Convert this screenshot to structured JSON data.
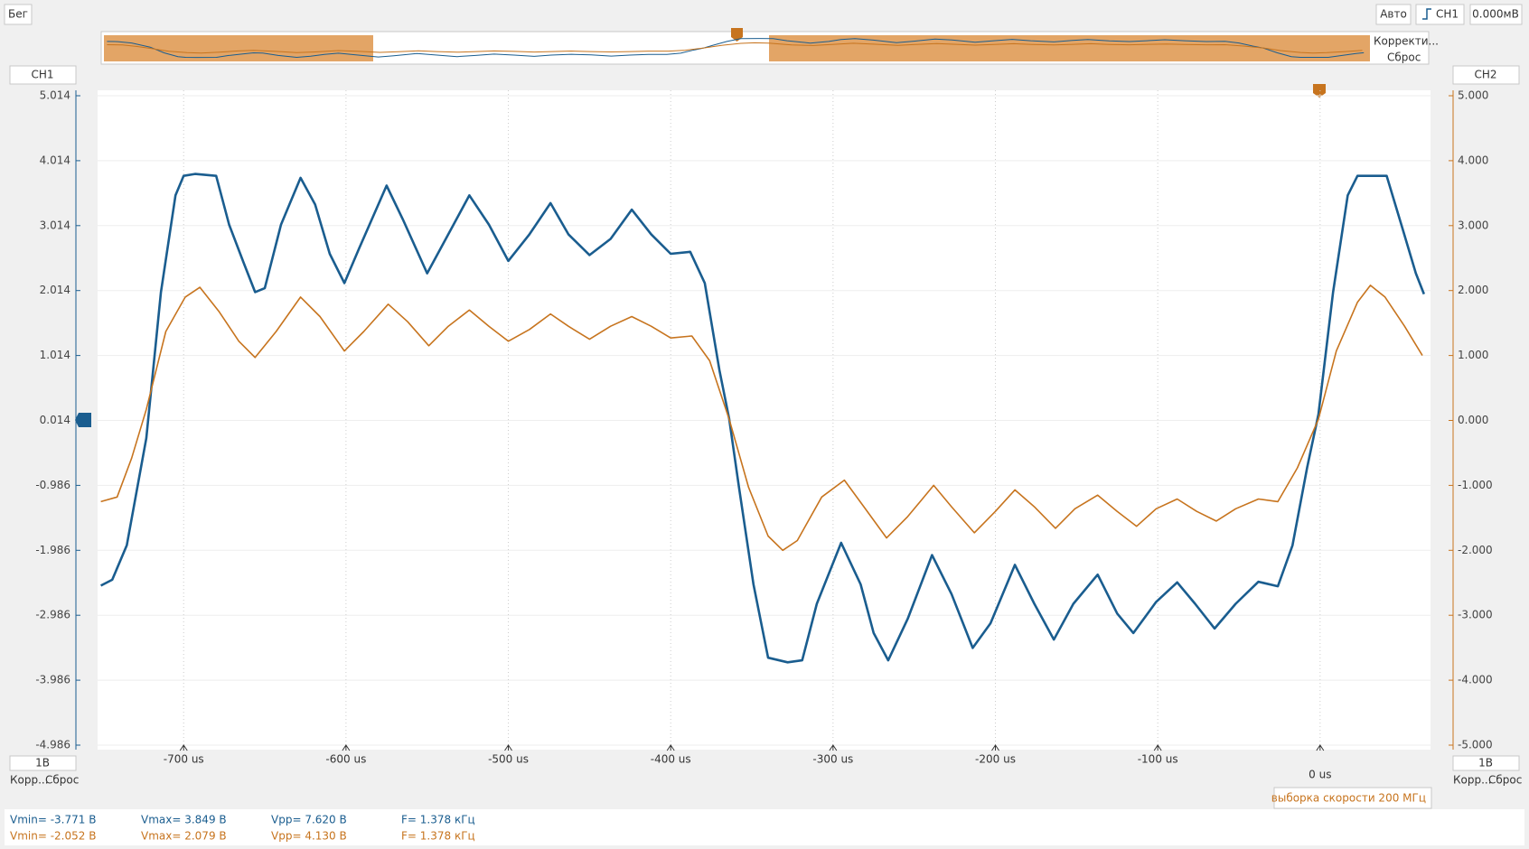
{
  "ui": {
    "run_status": "Бег",
    "trigger_mode": "Авто",
    "trigger_source": "CH1",
    "trigger_level": "0.000мВ",
    "overview_buttons": [
      "Корректи...",
      "Сброс"
    ],
    "ch1_label": "CH1",
    "ch2_label": "CH2",
    "ch1_scale": "1В",
    "ch2_scale": "1В",
    "ch1_buttons": [
      "Корр...",
      "Сброс"
    ],
    "ch2_buttons": [
      "Корр...",
      "Сброс"
    ],
    "sample_rate": "выборка скорости 200 МГц"
  },
  "measurements": [
    [
      "Vmin= -3.771 В",
      "Vmax= 3.849 В",
      "Vpp= 7.620 В",
      "F= 1.378 кГц"
    ],
    [
      "Vmin= -2.052 В",
      "Vmax= 2.079 В",
      "Vpp= 4.130 В",
      "F= 1.378 кГц"
    ]
  ],
  "chart_data": {
    "type": "line",
    "grid": true,
    "xlim": [
      -753,
      68
    ],
    "xticks": [
      {
        "value": -700,
        "label": "-700 us"
      },
      {
        "value": -600,
        "label": "-600 us"
      },
      {
        "value": -500,
        "label": "-500 us"
      },
      {
        "value": -400,
        "label": "-400 us"
      },
      {
        "value": -300,
        "label": "-300 us"
      },
      {
        "value": -200,
        "label": "-200 us"
      },
      {
        "value": -100,
        "label": "-100 us"
      },
      {
        "value": 0,
        "label": "0 us"
      }
    ],
    "ylim": [
      -4.986,
      5.014
    ],
    "yticks": [
      5.014,
      4.014,
      3.014,
      2.014,
      1.014,
      0.014,
      -0.986,
      -1.986,
      -2.986,
      -3.986,
      -4.986
    ],
    "y2lim": [
      -5,
      5
    ],
    "y2ticks": [
      {
        "value": 5,
        "label": "5.000"
      },
      {
        "value": 4,
        "label": "4.000"
      },
      {
        "value": 3,
        "label": "3.000"
      },
      {
        "value": 2,
        "label": "2.000"
      },
      {
        "value": 1,
        "label": "1.000"
      },
      {
        "value": 0,
        "label": "0.000"
      },
      {
        "value": -1,
        "label": "-1.000"
      },
      {
        "value": -2,
        "label": "-2.000"
      },
      {
        "value": -3,
        "label": "-3.000"
      },
      {
        "value": -4,
        "label": "-4.000"
      },
      {
        "value": -5,
        "label": "-5.000"
      }
    ],
    "series": [
      {
        "name": "CH1",
        "color": "#1a5d8f",
        "axis": "y",
        "x": [
          -751,
          -744,
          -735,
          -723,
          -714,
          -705,
          -700,
          -693,
          -680,
          -672,
          -663,
          -656,
          -650,
          -640,
          -628,
          -619,
          -610,
          -601,
          -592,
          -575,
          -565,
          -550,
          -537,
          -524,
          -512,
          -500,
          -487,
          -474,
          -463,
          -450,
          -437,
          -424,
          -412,
          -400,
          -388,
          -379,
          -370,
          -364,
          -358,
          -349,
          -340,
          -328,
          -319,
          -310,
          -295,
          -283,
          -275,
          -266,
          -254,
          -239,
          -227,
          -214,
          -203,
          -188,
          -176,
          -164,
          -152,
          -137,
          -125,
          -115,
          -101,
          -88,
          -77,
          -65,
          -52,
          -38,
          -26,
          -17,
          -8,
          -1,
          8,
          17,
          23,
          41,
          50,
          59,
          64
        ],
        "values": [
          -2.53,
          -2.44,
          -1.91,
          -0.26,
          1.99,
          3.48,
          3.78,
          3.81,
          3.78,
          3.03,
          2.44,
          1.99,
          2.05,
          3.03,
          3.75,
          3.34,
          2.58,
          2.13,
          2.66,
          3.63,
          3.11,
          2.28,
          2.88,
          3.48,
          3.03,
          2.47,
          2.88,
          3.36,
          2.88,
          2.56,
          2.81,
          3.26,
          2.88,
          2.58,
          2.61,
          2.13,
          0.79,
          0.04,
          -1.01,
          -2.51,
          -3.64,
          -3.71,
          -3.68,
          -2.81,
          -1.87,
          -2.51,
          -3.26,
          -3.68,
          -3.04,
          -2.06,
          -2.66,
          -3.49,
          -3.11,
          -2.21,
          -2.81,
          -3.36,
          -2.81,
          -2.36,
          -2.96,
          -3.26,
          -2.78,
          -2.48,
          -2.81,
          -3.19,
          -2.81,
          -2.47,
          -2.54,
          -1.91,
          -0.71,
          0.11,
          1.99,
          3.48,
          3.78,
          3.78,
          3.03,
          2.28,
          1.96
        ]
      },
      {
        "name": "CH2",
        "color": "#c7741e",
        "axis": "y2",
        "x": [
          -751,
          -741,
          -732,
          -723,
          -711,
          -699,
          -690,
          -678,
          -666,
          -656,
          -643,
          -628,
          -616,
          -601,
          -589,
          -574,
          -562,
          -549,
          -537,
          -524,
          -512,
          -500,
          -487,
          -474,
          -463,
          -450,
          -437,
          -424,
          -412,
          -400,
          -387,
          -376,
          -364,
          -352,
          -340,
          -331,
          -322,
          -307,
          -293,
          -281,
          -267,
          -254,
          -238,
          -227,
          -213,
          -200,
          -188,
          -176,
          -163,
          -151,
          -137,
          -125,
          -113,
          -101,
          -88,
          -76,
          -64,
          -52,
          -38,
          -26,
          -14,
          -1,
          10,
          23,
          31,
          40,
          52,
          63
        ],
        "values": [
          -1.25,
          -1.18,
          -0.58,
          0.17,
          1.37,
          1.9,
          2.05,
          1.67,
          1.22,
          0.97,
          1.37,
          1.9,
          1.6,
          1.07,
          1.37,
          1.79,
          1.52,
          1.15,
          1.45,
          1.7,
          1.45,
          1.22,
          1.4,
          1.64,
          1.45,
          1.25,
          1.45,
          1.6,
          1.45,
          1.27,
          1.3,
          0.92,
          0.02,
          -1.03,
          -1.78,
          -2.0,
          -1.85,
          -1.18,
          -0.92,
          -1.33,
          -1.81,
          -1.48,
          -1.0,
          -1.33,
          -1.73,
          -1.4,
          -1.07,
          -1.33,
          -1.66,
          -1.36,
          -1.15,
          -1.4,
          -1.63,
          -1.36,
          -1.21,
          -1.4,
          -1.55,
          -1.36,
          -1.21,
          -1.25,
          -0.73,
          0.02,
          1.07,
          1.82,
          2.08,
          1.9,
          1.45,
          1.0
        ]
      }
    ]
  }
}
